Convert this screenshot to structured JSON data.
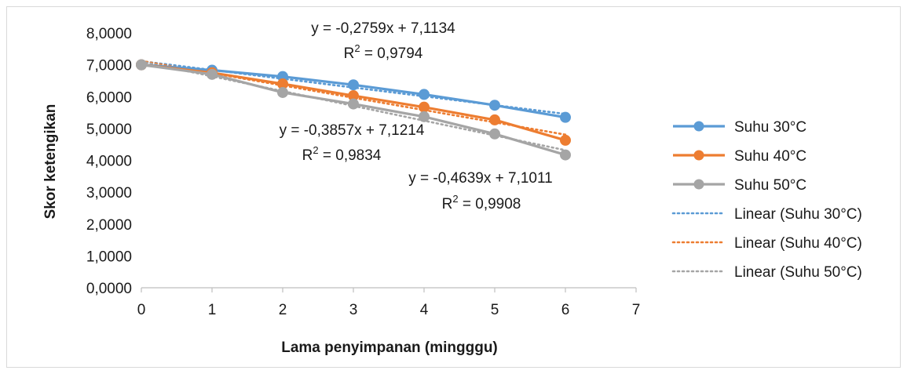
{
  "chart_data": {
    "type": "line",
    "title": "",
    "xlabel": "Lama penyimpanan (mingggu)",
    "ylabel": "Skor ketengikan",
    "xlim": [
      0,
      7
    ],
    "ylim": [
      0,
      8
    ],
    "x_ticks": [
      "0",
      "1",
      "2",
      "3",
      "4",
      "5",
      "6",
      "7"
    ],
    "y_ticks": [
      "0,0000",
      "1,0000",
      "2,0000",
      "3,0000",
      "4,0000",
      "5,0000",
      "6,0000",
      "7,0000",
      "8,0000"
    ],
    "x": [
      0,
      1,
      2,
      3,
      4,
      5,
      6
    ],
    "grid": false,
    "legend_position": "right",
    "series": [
      {
        "name": "Suhu 30°C",
        "color": "#5b9bd5",
        "values": [
          7.0,
          6.83,
          6.63,
          6.37,
          6.07,
          5.73,
          5.35
        ]
      },
      {
        "name": "Suhu 40°C",
        "color": "#ed7d31",
        "values": [
          7.0,
          6.75,
          6.4,
          6.03,
          5.67,
          5.27,
          4.63
        ]
      },
      {
        "name": "Suhu 50°C",
        "color": "#a5a5a5",
        "values": [
          7.0,
          6.7,
          6.13,
          5.77,
          5.37,
          4.83,
          4.17
        ]
      }
    ],
    "trendlines": [
      {
        "name": "Linear (Suhu 30°C)",
        "color": "#5b9bd5",
        "slope": -0.2759,
        "intercept": 7.1134,
        "equation": "y = -0,2759x + 7,1134",
        "r2_prefix": "R",
        "r2_sup": "2",
        "r2_value": " = 0,9794"
      },
      {
        "name": "Linear (Suhu 40°C)",
        "color": "#ed7d31",
        "slope": -0.3857,
        "intercept": 7.1214,
        "equation": "y = -0,3857x + 7,1214",
        "r2_prefix": "R",
        "r2_sup": "2",
        "r2_value": " = 0,9834"
      },
      {
        "name": "Linear (Suhu 50°C)",
        "color": "#a5a5a5",
        "slope": -0.4639,
        "intercept": 7.1011,
        "equation": "y = -0,4639x + 7,1011",
        "r2_prefix": "R",
        "r2_sup": "2",
        "r2_value": " = 0,9908"
      }
    ]
  }
}
